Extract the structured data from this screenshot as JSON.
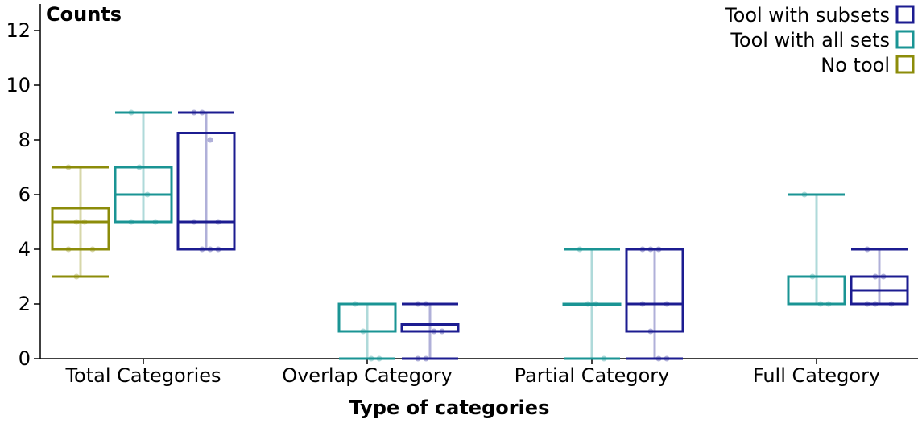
{
  "chart_data": {
    "type": "boxplot",
    "title": "",
    "ylabel": "Counts",
    "xlabel": "Type of categories",
    "ylim": [
      0,
      13
    ],
    "yticks": [
      0,
      2,
      4,
      6,
      8,
      10,
      12
    ],
    "categories": [
      "Total Categories",
      "Overlap Category",
      "Partial Category",
      "Full Category"
    ],
    "legend_position": "top-right",
    "series": [
      {
        "name": "No tool",
        "color": "#8c8c0a",
        "boxes": [
          {
            "category": "Total Categories",
            "min": 3,
            "q1": 4,
            "median": 5,
            "q3": 5.5,
            "max": 7,
            "points": [
              7,
              5,
              5,
              4,
              4,
              3
            ]
          },
          null,
          null,
          null
        ]
      },
      {
        "name": "Tool with all sets",
        "color": "#1a9494",
        "boxes": [
          {
            "category": "Total Categories",
            "min": 5,
            "q1": 5,
            "median": 6,
            "q3": 7,
            "max": 9,
            "points": [
              9,
              7,
              6,
              5,
              5
            ]
          },
          {
            "category": "Overlap Category",
            "min": 0,
            "q1": 1,
            "median": 1,
            "q3": 2,
            "max": 2,
            "points": [
              2,
              1,
              0,
              0
            ]
          },
          {
            "category": "Partial Category",
            "min": 0,
            "q1": 2,
            "median": 2,
            "q3": 2,
            "max": 4,
            "points": [
              4,
              2,
              2,
              0
            ]
          },
          {
            "category": "Full Category",
            "min": 2,
            "q1": 2,
            "median": 2,
            "q3": 3,
            "max": 6,
            "points": [
              6,
              3,
              2,
              2
            ]
          }
        ]
      },
      {
        "name": "Tool with subsets",
        "color": "#1c1c91",
        "boxes": [
          {
            "category": "Total Categories",
            "min": 4,
            "q1": 4,
            "median": 5,
            "q3": 8.25,
            "max": 9,
            "points": [
              9,
              9,
              8,
              5,
              5,
              4,
              4,
              4
            ]
          },
          {
            "category": "Overlap Category",
            "min": 0,
            "q1": 1,
            "median": 1,
            "q3": 1.25,
            "max": 2,
            "points": [
              2,
              2,
              1,
              1,
              0,
              0
            ]
          },
          {
            "category": "Partial Category",
            "min": 0,
            "q1": 1,
            "median": 2,
            "q3": 4,
            "max": 4,
            "points": [
              4,
              4,
              4,
              2,
              2,
              1,
              0,
              0
            ]
          },
          {
            "category": "Full Category",
            "min": 2,
            "q1": 2,
            "median": 2.5,
            "q3": 3,
            "max": 4,
            "points": [
              4,
              3,
              3,
              2,
              2,
              2
            ]
          }
        ]
      }
    ],
    "legend": [
      "Tool with subsets",
      "Tool with all sets",
      "No tool"
    ]
  }
}
